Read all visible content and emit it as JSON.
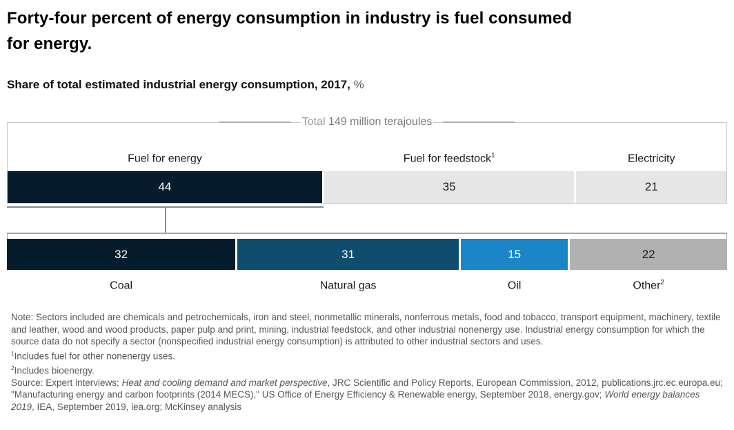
{
  "header": {
    "title_line1": "Forty-four percent of energy consumption in industry is fuel consumed",
    "title_line2": "for energy.",
    "subtitle_text": "Share of total estimated industrial energy consumption, 2017,",
    "subtitle_unit": "%"
  },
  "total_banner": {
    "prefix": "Total ",
    "value": "149 million terajoules"
  },
  "chart_data": {
    "type": "bar",
    "subtype": "horizontal-stacked-100-percent-linked",
    "title": "Forty-four percent of energy consumption in industry is fuel consumed for energy.",
    "subtitle": "Share of total estimated industrial energy consumption, 2017, %",
    "total": "149 million terajoules",
    "unit": "%",
    "bars": [
      {
        "id": "by-use",
        "segments": [
          {
            "label": "Fuel for energy",
            "sup": "",
            "value": 44,
            "color": "#051c2c",
            "text_color": "#ffffff"
          },
          {
            "label": "Fuel for feedstock",
            "sup": "1",
            "value": 35,
            "color": "#e6e6e6",
            "text_color": "#1a1a1a"
          },
          {
            "label": "Electricity",
            "sup": "",
            "value": 21,
            "color": "#e6e6e6",
            "text_color": "#1a1a1a"
          }
        ]
      },
      {
        "id": "fuel-for-energy-by-source",
        "linked_to": "Fuel for energy",
        "segments": [
          {
            "label": "Coal",
            "sup": "",
            "value": 32,
            "color": "#051c2c",
            "text_color": "#ffffff"
          },
          {
            "label": "Natural gas",
            "sup": "",
            "value": 31,
            "color": "#0e4d6d",
            "text_color": "#ffffff"
          },
          {
            "label": "Oil",
            "sup": "",
            "value": 15,
            "color": "#1a85c7",
            "text_color": "#ffffff"
          },
          {
            "label": "Other",
            "sup": "2",
            "value": 22,
            "color": "#b1b1b1",
            "text_color": "#1a1a1a"
          }
        ]
      }
    ]
  },
  "notes": {
    "note": "Note: Sectors included are chemicals and petrochemicals, iron and steel, nonmetallic minerals, nonferrous metals, food and tobacco, transport equipment, machinery, textile and leather, wood and wood products, paper pulp and print, mining, industrial feedstock, and other industrial nonenergy use. Industrial energy consumption for which the source data do not specify a sector (nonspecified industrial energy consumption) is attributed to other industrial sectors and uses.",
    "footnote1_sup": "1",
    "footnote1_text": "Includes fuel for other nonenergy uses.",
    "footnote2_sup": "2",
    "footnote2_text": "Includes bioenergy.",
    "source_p1": "Source: Expert interviews; ",
    "source_i1": "Heat and cooling demand and market perspective",
    "source_p2": ", JRC Scientific and Policy Reports, European Commission, 2012, publications.jrc.ec.europa.eu; \"Manufacturing energy and carbon footprints (2014 MECS),\" US Office of Energy Efficiency & Renewable energy, September 2018, energy.gov; ",
    "source_i2": "World energy balances 2019",
    "source_p3": ", IEA, September 2019, iea.org; McKinsey analysis"
  }
}
